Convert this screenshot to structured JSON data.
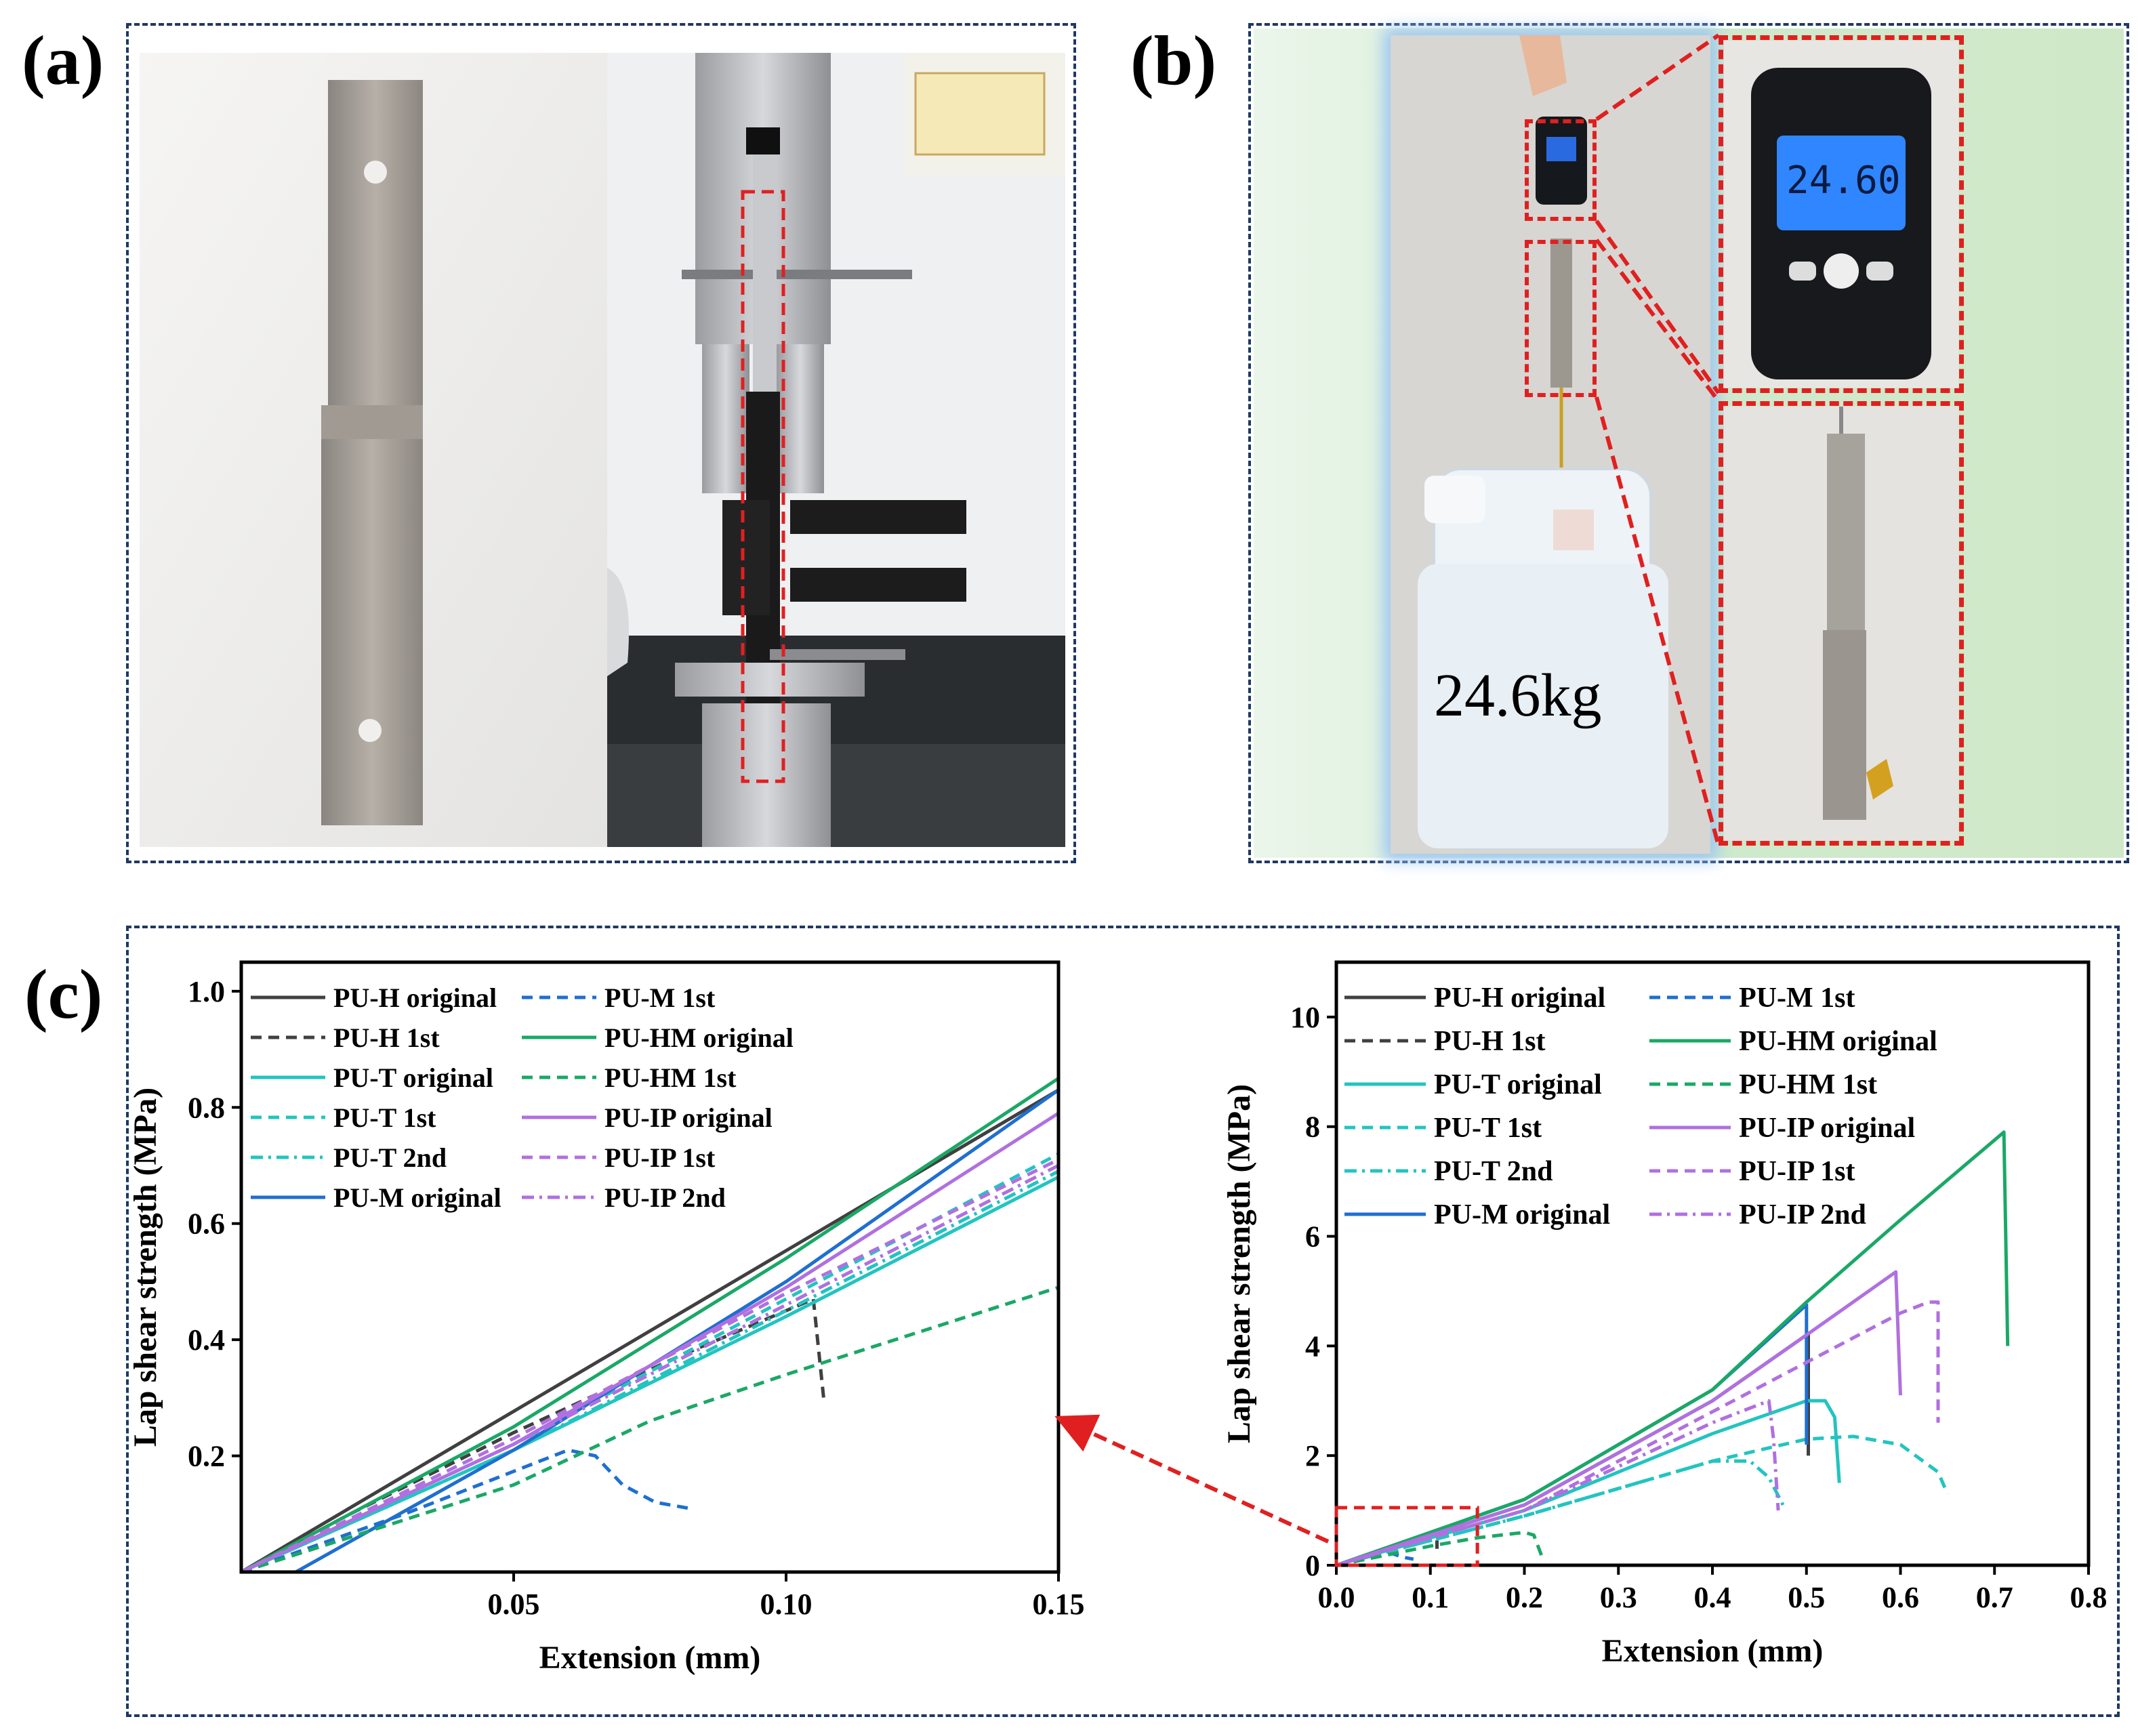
{
  "figure": {
    "panel_a_label": "(a)",
    "panel_b_label": "(b)",
    "panel_c_label": "(c)"
  },
  "panel_b": {
    "weight_text": "24.6kg",
    "scale_display": "24.60"
  },
  "colors": {
    "frame": "#1f3864",
    "highlight_red": "#e02020",
    "PU-H": "#404040",
    "PU-T": "#22c4c0",
    "PU-M": "#1f6fd0",
    "PU-HM": "#1aa866",
    "PU-IP": "#b070e0"
  },
  "chart_data": [
    {
      "type": "line",
      "title": "",
      "xlabel": "Extension (mm)",
      "ylabel": "Lap shear strength (MPa)",
      "xlim": [
        0.0,
        0.15
      ],
      "ylim": [
        0.0,
        1.05
      ],
      "xticks": [
        0.05,
        0.1,
        0.15
      ],
      "xtick_labels": [
        "0.05",
        "0.10",
        "0.15"
      ],
      "yticks": [
        0.2,
        0.4,
        0.6,
        0.8,
        1.0
      ],
      "ytick_labels": [
        "0.2",
        "0.4",
        "0.6",
        "0.8",
        "1.0"
      ],
      "grid": false,
      "legend_position": "top-left",
      "series": [
        {
          "name": "PU-H original",
          "color": "#404040",
          "dash": "solid",
          "x": [
            0,
            0.15
          ],
          "y": [
            0,
            0.83
          ]
        },
        {
          "name": "PU-H 1st",
          "color": "#404040",
          "dash": "dash",
          "x": [
            0,
            0.02,
            0.05,
            0.08,
            0.1,
            0.105,
            0.107
          ],
          "y": [
            0,
            0.1,
            0.24,
            0.37,
            0.45,
            0.47,
            0.29
          ]
        },
        {
          "name": "PU-T original",
          "color": "#22c4c0",
          "dash": "solid",
          "x": [
            0,
            0.05,
            0.1,
            0.15
          ],
          "y": [
            0,
            0.21,
            0.44,
            0.68
          ]
        },
        {
          "name": "PU-T 1st",
          "color": "#22c4c0",
          "dash": "dash",
          "x": [
            0,
            0.05,
            0.1,
            0.15
          ],
          "y": [
            0,
            0.22,
            0.47,
            0.72
          ]
        },
        {
          "name": "PU-T 2nd",
          "color": "#22c4c0",
          "dash": "dashdot",
          "x": [
            0,
            0.05,
            0.1,
            0.15
          ],
          "y": [
            0,
            0.21,
            0.45,
            0.69
          ]
        },
        {
          "name": "PU-M original",
          "color": "#1f6fd0",
          "dash": "solid",
          "x": [
            0.01,
            0.05,
            0.1,
            0.15
          ],
          "y": [
            0,
            0.21,
            0.5,
            0.83
          ]
        },
        {
          "name": "PU-M 1st",
          "color": "#1f6fd0",
          "dash": "dash",
          "x": [
            0,
            0.03,
            0.06,
            0.065,
            0.07,
            0.076,
            0.082
          ],
          "y": [
            0,
            0.1,
            0.21,
            0.2,
            0.15,
            0.12,
            0.11
          ]
        },
        {
          "name": "PU-HM original",
          "color": "#1aa866",
          "dash": "solid",
          "x": [
            0,
            0.05,
            0.1,
            0.15
          ],
          "y": [
            0,
            0.25,
            0.54,
            0.85
          ]
        },
        {
          "name": "PU-HM 1st",
          "color": "#1aa866",
          "dash": "dash",
          "x": [
            0,
            0.05,
            0.075,
            0.1,
            0.15
          ],
          "y": [
            0,
            0.15,
            0.26,
            0.34,
            0.49
          ]
        },
        {
          "name": "PU-IP original",
          "color": "#b070e0",
          "dash": "solid",
          "x": [
            0,
            0.05,
            0.1,
            0.15
          ],
          "y": [
            0,
            0.22,
            0.49,
            0.79
          ]
        },
        {
          "name": "PU-IP 1st",
          "color": "#b070e0",
          "dash": "dash",
          "x": [
            0,
            0.05,
            0.1,
            0.15
          ],
          "y": [
            0,
            0.23,
            0.48,
            0.71
          ]
        },
        {
          "name": "PU-IP 2nd",
          "color": "#b070e0",
          "dash": "dashdot",
          "x": [
            0,
            0.05,
            0.1,
            0.15
          ],
          "y": [
            0,
            0.22,
            0.46,
            0.7
          ]
        }
      ]
    },
    {
      "type": "line",
      "title": "",
      "xlabel": "Extension (mm)",
      "ylabel": "Lap shear strength (MPa)",
      "xlim": [
        0.0,
        0.8
      ],
      "ylim": [
        0,
        11
      ],
      "xticks": [
        0.0,
        0.1,
        0.2,
        0.3,
        0.4,
        0.5,
        0.6,
        0.7,
        0.8
      ],
      "xtick_labels": [
        "0.0",
        "0.1",
        "0.2",
        "0.3",
        "0.4",
        "0.5",
        "0.6",
        "0.7",
        "0.8"
      ],
      "yticks": [
        0,
        2,
        4,
        6,
        8,
        10
      ],
      "ytick_labels": [
        "0",
        "2",
        "4",
        "6",
        "8",
        "10"
      ],
      "grid": false,
      "legend_position": "top-left",
      "series": [
        {
          "name": "PU-H original",
          "color": "#404040",
          "dash": "solid",
          "x": [
            0,
            0.2,
            0.4,
            0.5,
            0.502,
            0.502
          ],
          "y": [
            0,
            1.1,
            3.0,
            4.2,
            4.2,
            2.0
          ]
        },
        {
          "name": "PU-H 1st",
          "color": "#404040",
          "dash": "dash",
          "x": [
            0,
            0.1,
            0.107,
            0.107
          ],
          "y": [
            0,
            0.48,
            0.48,
            0.3
          ]
        },
        {
          "name": "PU-T original",
          "color": "#22c4c0",
          "dash": "solid",
          "x": [
            0,
            0.2,
            0.4,
            0.5,
            0.52,
            0.53,
            0.535
          ],
          "y": [
            0,
            1.0,
            2.4,
            3.0,
            3.0,
            2.7,
            1.5
          ]
        },
        {
          "name": "PU-T 1st",
          "color": "#22c4c0",
          "dash": "dash",
          "x": [
            0,
            0.2,
            0.4,
            0.5,
            0.55,
            0.6,
            0.64,
            0.65
          ],
          "y": [
            0,
            0.9,
            1.9,
            2.3,
            2.35,
            2.2,
            1.7,
            1.3
          ]
        },
        {
          "name": "PU-T 2nd",
          "color": "#22c4c0",
          "dash": "dashdot",
          "x": [
            0,
            0.2,
            0.4,
            0.44,
            0.46,
            0.475
          ],
          "y": [
            0,
            0.9,
            1.9,
            1.9,
            1.6,
            1.1
          ]
        },
        {
          "name": "PU-M original",
          "color": "#1f6fd0",
          "dash": "solid",
          "x": [
            0,
            0.2,
            0.4,
            0.5,
            0.5
          ],
          "y": [
            0,
            1.2,
            3.2,
            4.75,
            2.2
          ]
        },
        {
          "name": "PU-M 1st",
          "color": "#1f6fd0",
          "dash": "dash",
          "x": [
            0,
            0.06,
            0.07,
            0.082
          ],
          "y": [
            0,
            0.21,
            0.15,
            0.11
          ]
        },
        {
          "name": "PU-HM original",
          "color": "#1aa866",
          "dash": "solid",
          "x": [
            0,
            0.2,
            0.4,
            0.5,
            0.6,
            0.71,
            0.714
          ],
          "y": [
            0,
            1.2,
            3.2,
            4.8,
            6.3,
            7.9,
            4.0
          ]
        },
        {
          "name": "PU-HM 1st",
          "color": "#1aa866",
          "dash": "dash",
          "x": [
            0,
            0.1,
            0.15,
            0.2,
            0.21,
            0.22
          ],
          "y": [
            0,
            0.35,
            0.5,
            0.6,
            0.55,
            0.1
          ]
        },
        {
          "name": "PU-IP original",
          "color": "#b070e0",
          "dash": "solid",
          "x": [
            0,
            0.2,
            0.4,
            0.5,
            0.595,
            0.6
          ],
          "y": [
            0,
            1.1,
            3.0,
            4.2,
            5.35,
            3.1
          ]
        },
        {
          "name": "PU-IP 1st",
          "color": "#b070e0",
          "dash": "dash",
          "x": [
            0,
            0.2,
            0.4,
            0.5,
            0.6,
            0.63,
            0.64,
            0.64
          ],
          "y": [
            0,
            1.0,
            2.8,
            3.7,
            4.6,
            4.8,
            4.8,
            2.6
          ]
        },
        {
          "name": "PU-IP 2nd",
          "color": "#b070e0",
          "dash": "dashdot",
          "x": [
            0,
            0.2,
            0.4,
            0.46,
            0.465,
            0.47
          ],
          "y": [
            0,
            1.0,
            2.6,
            3.0,
            2.3,
            1.0
          ]
        }
      ]
    }
  ]
}
